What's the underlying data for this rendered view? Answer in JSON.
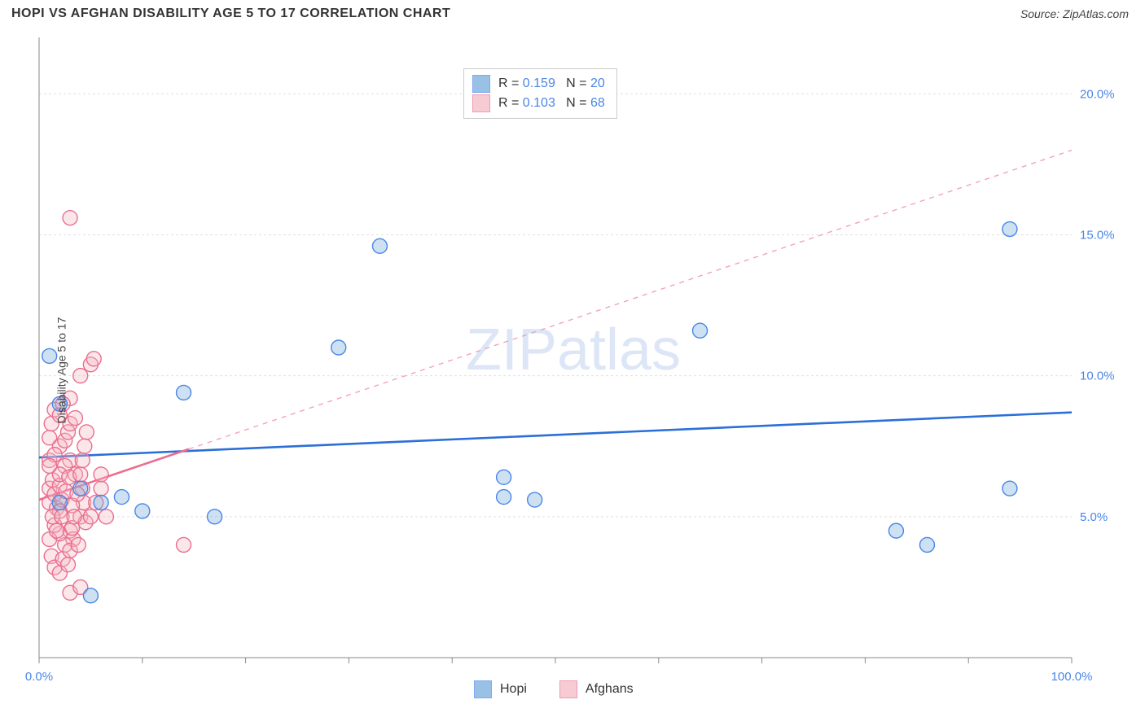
{
  "title": "HOPI VS AFGHAN DISABILITY AGE 5 TO 17 CORRELATION CHART",
  "source": "Source: ZipAtlas.com",
  "y_axis_label": "Disability Age 5 to 17",
  "watermark": "ZIPatlas",
  "chart": {
    "type": "scatter",
    "x_range": [
      0,
      100
    ],
    "y_range": [
      0,
      22
    ],
    "x_ticks": {
      "labels": [
        {
          "v": 0,
          "t": "0.0%"
        },
        {
          "v": 100,
          "t": "100.0%"
        }
      ],
      "minor": [
        10,
        20,
        30,
        40,
        50,
        60,
        70,
        80,
        90
      ]
    },
    "y_ticks": {
      "labels": [
        {
          "v": 5,
          "t": "5.0%"
        },
        {
          "v": 10,
          "t": "10.0%"
        },
        {
          "v": 15,
          "t": "15.0%"
        },
        {
          "v": 20,
          "t": "20.0%"
        }
      ]
    },
    "grid_color": "#e0e0e0",
    "axis_color": "#888888",
    "background": "#ffffff",
    "marker_radius": 9,
    "marker_opacity_fill": 0.35,
    "marker_stroke_width": 1.4
  },
  "series": {
    "hopi": {
      "label": "Hopi",
      "color": "#6fa8dc",
      "stroke": "#4a86e8",
      "R": "0.159",
      "N": "20",
      "regression": {
        "x0": 0,
        "y0": 7.1,
        "x1": 100,
        "y1": 8.7,
        "dash": false,
        "width": 2.6,
        "color": "#2b6fd8"
      },
      "points": [
        [
          1,
          10.7
        ],
        [
          2,
          9.0
        ],
        [
          2,
          5.5
        ],
        [
          6,
          5.5
        ],
        [
          10,
          5.2
        ],
        [
          8,
          5.7
        ],
        [
          14,
          9.4
        ],
        [
          17,
          5.0
        ],
        [
          29,
          11.0
        ],
        [
          33,
          14.6
        ],
        [
          45,
          5.7
        ],
        [
          48,
          5.6
        ],
        [
          45,
          6.4
        ],
        [
          64,
          11.6
        ],
        [
          86,
          4.0
        ],
        [
          83,
          4.5
        ],
        [
          94,
          6.0
        ],
        [
          94,
          15.2
        ],
        [
          5,
          2.2
        ],
        [
          4,
          6.0
        ]
      ]
    },
    "afghans": {
      "label": "Afghans",
      "color": "#f4b6c2",
      "stroke": "#ea6f8e",
      "R": "0.103",
      "N": "68",
      "regression": {
        "x0": 0,
        "y0": 5.6,
        "x1": 100,
        "y1": 18.0,
        "dash": true,
        "width": 1.4,
        "color": "#f4a3b6",
        "solid_until": 14.5
      },
      "points": [
        [
          1,
          5.5
        ],
        [
          1,
          6.0
        ],
        [
          1.3,
          6.3
        ],
        [
          1.5,
          5.8
        ],
        [
          1.7,
          5.3
        ],
        [
          2,
          6.1
        ],
        [
          2.2,
          5.6
        ],
        [
          2,
          5.2
        ],
        [
          1,
          7.0
        ],
        [
          2,
          7.5
        ],
        [
          2.5,
          7.7
        ],
        [
          2.8,
          8.0
        ],
        [
          3,
          8.3
        ],
        [
          3.5,
          8.5
        ],
        [
          3,
          9.2
        ],
        [
          4,
          10.0
        ],
        [
          5,
          10.4
        ],
        [
          5.3,
          10.6
        ],
        [
          3,
          15.6
        ],
        [
          3,
          4.5
        ],
        [
          3.3,
          4.2
        ],
        [
          2.5,
          4.0
        ],
        [
          2,
          4.4
        ],
        [
          1.5,
          4.7
        ],
        [
          1,
          4.2
        ],
        [
          1.2,
          3.6
        ],
        [
          1.5,
          3.2
        ],
        [
          2,
          3.0
        ],
        [
          2.3,
          3.5
        ],
        [
          2.8,
          3.3
        ],
        [
          3,
          3.8
        ],
        [
          3.2,
          4.6
        ],
        [
          3.8,
          4.0
        ],
        [
          4,
          5.0
        ],
        [
          4.3,
          5.5
        ],
        [
          4.5,
          4.8
        ],
        [
          4.2,
          6.0
        ],
        [
          3.5,
          6.5
        ],
        [
          3,
          7.0
        ],
        [
          2.5,
          6.8
        ],
        [
          2,
          6.5
        ],
        [
          1.5,
          7.2
        ],
        [
          1,
          7.8
        ],
        [
          1.2,
          8.3
        ],
        [
          1.5,
          8.8
        ],
        [
          2,
          8.6
        ],
        [
          2.3,
          9.0
        ],
        [
          1,
          6.8
        ],
        [
          1.3,
          5.0
        ],
        [
          1.7,
          4.5
        ],
        [
          2.2,
          5.0
        ],
        [
          2.6,
          5.9
        ],
        [
          2.9,
          6.4
        ],
        [
          3.2,
          5.4
        ],
        [
          3.4,
          5.0
        ],
        [
          3.7,
          5.8
        ],
        [
          4,
          6.5
        ],
        [
          4.2,
          7.0
        ],
        [
          4.4,
          7.5
        ],
        [
          4.6,
          8.0
        ],
        [
          5,
          5.0
        ],
        [
          5.5,
          5.5
        ],
        [
          6,
          6.0
        ],
        [
          6,
          6.5
        ],
        [
          6.5,
          5.0
        ],
        [
          14,
          4.0
        ],
        [
          3,
          2.3
        ],
        [
          4,
          2.5
        ]
      ]
    }
  },
  "legend_top": [
    {
      "series": "hopi"
    },
    {
      "series": "afghans"
    }
  ],
  "legend_bottom": [
    "hopi",
    "afghans"
  ]
}
